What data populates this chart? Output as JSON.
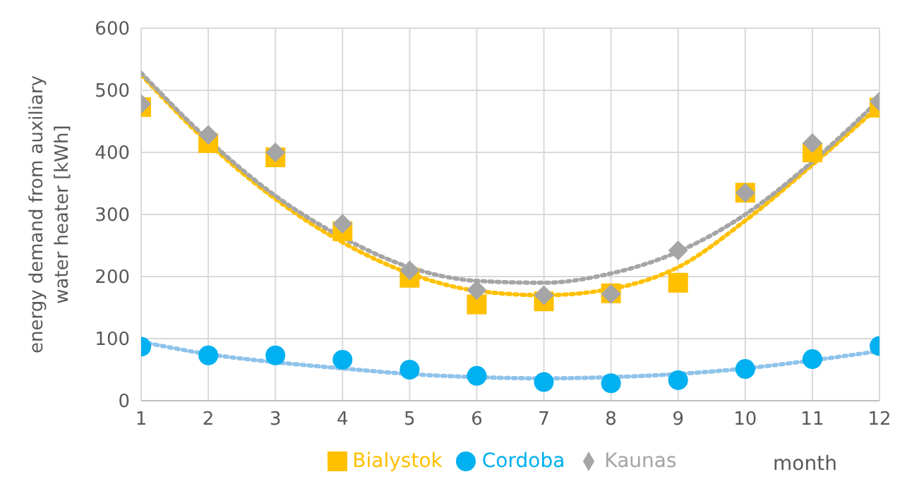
{
  "chart_data": {
    "type": "scatter",
    "xlabel": "month",
    "ylabel": "energy demand from auxiliary water heater [kWh]",
    "x": [
      1,
      2,
      3,
      4,
      5,
      6,
      7,
      8,
      9,
      10,
      11,
      12
    ],
    "xlim": [
      1,
      12
    ],
    "xticks": [
      1,
      2,
      3,
      4,
      5,
      6,
      7,
      8,
      9,
      10,
      11,
      12
    ],
    "ylim": [
      0,
      600
    ],
    "yticks": [
      0,
      100,
      200,
      300,
      400,
      500,
      600
    ],
    "grid": true,
    "legend": "bottom",
    "series": [
      {
        "type": "line",
        "color": "#ffc000",
        "line_style": "dotted",
        "marker": "none",
        "values": [
          525,
          415,
          325,
          255,
          205,
          177,
          170,
          180,
          215,
          290,
          380,
          475
        ]
      },
      {
        "type": "line",
        "color": "#a5a5a5",
        "line_style": "dotted",
        "marker": "none",
        "values": [
          528,
          420,
          330,
          263,
          215,
          193,
          190,
          205,
          240,
          300,
          385,
          485
        ]
      },
      {
        "type": "line",
        "color": "#8fc3ea",
        "line_style": "dotted",
        "marker": "none",
        "values": [
          95,
          75,
          62,
          52,
          43,
          38,
          36,
          38,
          43,
          52,
          65,
          80
        ]
      },
      {
        "name": "Bialystok",
        "color": "#ffc000",
        "marker": "square",
        "values": [
          473,
          415,
          392,
          273,
          198,
          155,
          160,
          173,
          190,
          335,
          400,
          472
        ]
      },
      {
        "name": "Cordoba",
        "color": "#00b0f0",
        "marker": "circle",
        "values": [
          87,
          73,
          73,
          66,
          50,
          40,
          30,
          28,
          33,
          51,
          67,
          88
        ]
      },
      {
        "name": "Kaunas",
        "color": "#a5a5a5",
        "marker": "diamond",
        "values": [
          478,
          428,
          400,
          285,
          210,
          178,
          170,
          172,
          242,
          335,
          415,
          482
        ]
      }
    ]
  }
}
